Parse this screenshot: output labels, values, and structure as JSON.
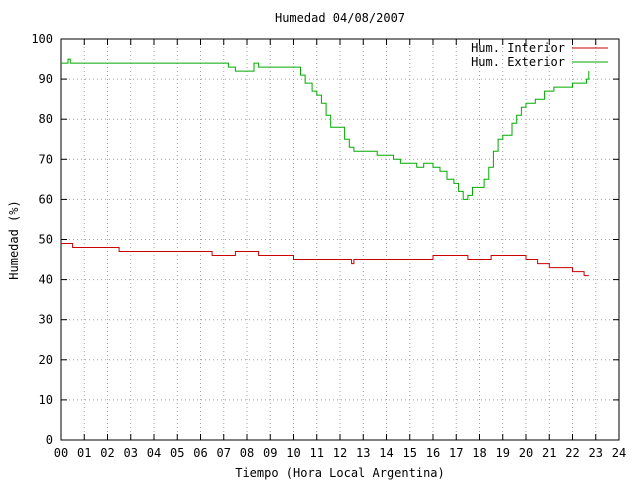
{
  "chart_data": {
    "type": "line",
    "title": "Humedad 04/08/2007",
    "xlabel": "Tiempo (Hora Local Argentina)",
    "ylabel": "Humedad (%)",
    "xlim": [
      0,
      24
    ],
    "ylim": [
      0,
      100
    ],
    "x_ticks": [
      "00",
      "01",
      "02",
      "03",
      "04",
      "05",
      "06",
      "07",
      "08",
      "09",
      "10",
      "11",
      "12",
      "13",
      "14",
      "15",
      "16",
      "17",
      "18",
      "19",
      "20",
      "21",
      "22",
      "23",
      "24"
    ],
    "y_ticks": [
      "0",
      "10",
      "20",
      "30",
      "40",
      "50",
      "60",
      "70",
      "80",
      "90",
      "100"
    ],
    "grid": true,
    "legend_position": "top-right",
    "series": [
      {
        "name": "Hum. Interior",
        "color": "#cc0000",
        "x": [
          0,
          0.4,
          0.5,
          1.0,
          1.5,
          2.0,
          2.5,
          3.0,
          4.0,
          5.0,
          6.0,
          6.5,
          7.0,
          7.5,
          8.0,
          8.5,
          9.0,
          9.5,
          10.0,
          11.0,
          12.0,
          12.5,
          12.6,
          13.0,
          14.0,
          15.0,
          15.5,
          16.0,
          17.0,
          17.5,
          18.0,
          18.5,
          19.0,
          19.5,
          20.0,
          20.5,
          21.0,
          21.5,
          22.0,
          22.3,
          22.5,
          22.7
        ],
        "values": [
          49,
          49,
          48,
          48,
          48,
          48,
          47,
          47,
          47,
          47,
          47,
          46,
          46,
          47,
          47,
          46,
          46,
          46,
          45,
          45,
          45,
          44,
          45,
          45,
          45,
          45,
          45,
          46,
          46,
          45,
          45,
          46,
          46,
          46,
          45,
          44,
          43,
          43,
          42,
          42,
          41,
          41
        ]
      },
      {
        "name": "Hum. Exterior",
        "color": "#00aa00",
        "x": [
          0,
          0.3,
          0.4,
          1.0,
          2.0,
          3.0,
          4.0,
          5.0,
          6.0,
          7.0,
          7.2,
          7.5,
          8.0,
          8.3,
          8.5,
          9.0,
          9.5,
          10.0,
          10.3,
          10.5,
          10.8,
          11.0,
          11.2,
          11.4,
          11.6,
          11.8,
          12.0,
          12.2,
          12.4,
          12.6,
          12.8,
          13.0,
          13.3,
          13.6,
          14.0,
          14.3,
          14.6,
          15.0,
          15.3,
          15.6,
          16.0,
          16.3,
          16.6,
          16.9,
          17.1,
          17.3,
          17.5,
          17.7,
          18.0,
          18.2,
          18.4,
          18.6,
          18.8,
          19.0,
          19.2,
          19.4,
          19.6,
          19.8,
          20.0,
          20.4,
          20.8,
          21.2,
          21.6,
          22.0,
          22.4,
          22.6,
          22.7
        ],
        "values": [
          94,
          95,
          94,
          94,
          94,
          94,
          94,
          94,
          94,
          94,
          93,
          92,
          92,
          94,
          93,
          93,
          93,
          93,
          91,
          89,
          87,
          86,
          84,
          81,
          78,
          78,
          78,
          75,
          73,
          72,
          72,
          72,
          72,
          71,
          71,
          70,
          69,
          69,
          68,
          69,
          68,
          67,
          65,
          64,
          62,
          60,
          61,
          63,
          63,
          65,
          68,
          72,
          75,
          76,
          76,
          79,
          81,
          83,
          84,
          85,
          87,
          88,
          88,
          89,
          89,
          90,
          92
        ]
      }
    ]
  }
}
